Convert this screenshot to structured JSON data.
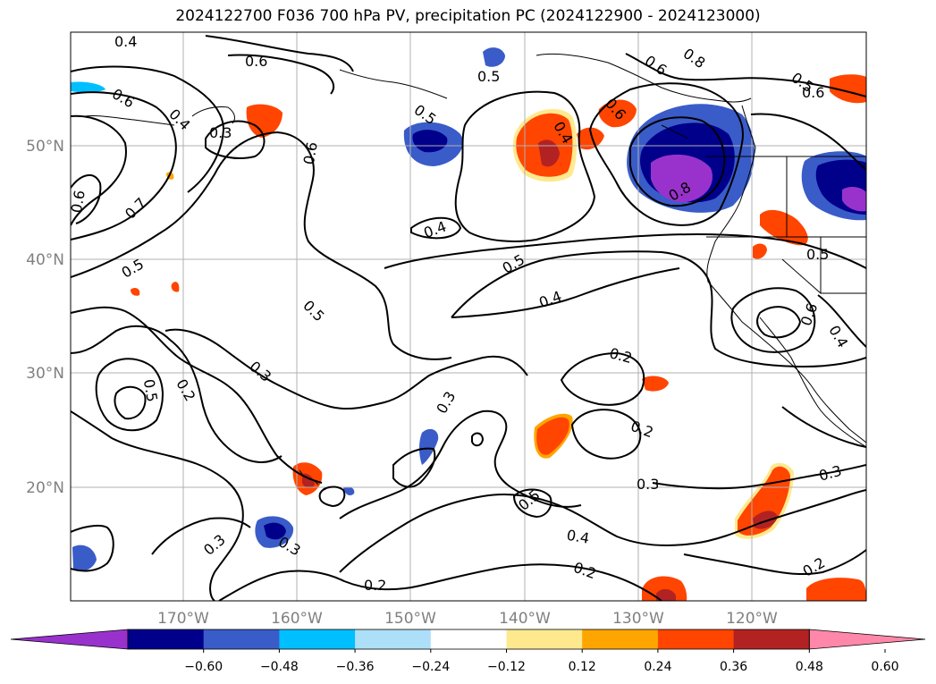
{
  "title": "2024122700 F036 700 hPa PV, precipitation PC (2024122900 - 2024123000)",
  "lat_labels": [
    "50°N",
    "40°N",
    "30°N",
    "20°N"
  ],
  "lon_labels": [
    "170°W",
    "160°W",
    "150°W",
    "140°W",
    "130°W",
    "120°W"
  ],
  "colorbar": {
    "colors": [
      "#9932CC",
      "#00008B",
      "#3A5CC9",
      "#00BFFF",
      "#ADE0F8",
      "#FFFFFF",
      "#FFE98F",
      "#FFA500",
      "#FF4500",
      "#B22222",
      "#FF88AA"
    ],
    "ticks": [
      "−0.60",
      "−0.48",
      "−0.36",
      "−0.24",
      "−0.12",
      "0.12",
      "0.24",
      "0.36",
      "0.48",
      "0.60"
    ]
  },
  "contour_labels": [
    "0.4",
    "0.6",
    "0.5",
    "0.6",
    "0.8",
    "0.6",
    "0.6",
    "0.4",
    "0.3",
    "0.5",
    "0.4",
    "0.6",
    "0.5",
    "0.8",
    "0.6",
    "0.7",
    "0.5",
    "0.4",
    "0.5",
    "0.5",
    "0.4",
    "0.5",
    "0.6",
    "0.3",
    "0.2",
    "0.3",
    "0.5",
    "0.2",
    "0.4",
    "0.2",
    "0.3",
    "0.3",
    "0.5",
    "0.4",
    "0.3",
    "0.3",
    "0.2",
    "0.2",
    "0.6",
    "0.2"
  ]
}
